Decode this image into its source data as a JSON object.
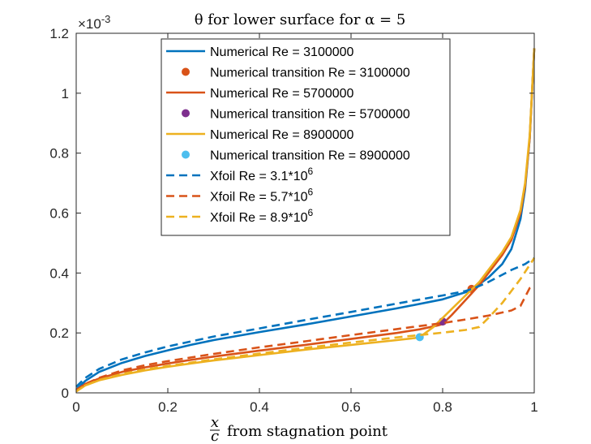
{
  "chart_data": {
    "type": "line",
    "title": "θ for lower surface for α = 5",
    "xlabel_frac_num": "x",
    "xlabel_frac_den": "c",
    "xlabel_text": "from stagnation point",
    "ylabel": "",
    "y_exponent": "×10",
    "y_exponent_power": "-3",
    "xlim": [
      0,
      1
    ],
    "ylim": [
      0,
      1.2
    ],
    "xticks": [
      0,
      0.2,
      0.4,
      0.6,
      0.8,
      1
    ],
    "yticks": [
      0,
      0.2,
      0.4,
      0.6,
      0.8,
      1,
      1.2
    ],
    "xtick_labels": [
      "0",
      "0.2",
      "0.4",
      "0.6",
      "0.8",
      "1"
    ],
    "ytick_labels": [
      "0",
      "0.2",
      "0.4",
      "0.6",
      "0.8",
      "1",
      "1.2"
    ],
    "grid": false,
    "legend_position": "top-center",
    "series": [
      {
        "name": "Numerical Re = 3100000",
        "style": "solid",
        "color": "#0072BD",
        "x": [
          0,
          0.02,
          0.05,
          0.1,
          0.15,
          0.2,
          0.25,
          0.3,
          0.4,
          0.5,
          0.6,
          0.7,
          0.8,
          0.85,
          0.86,
          0.87,
          0.9,
          0.93,
          0.95,
          0.97,
          0.98,
          0.99,
          1.0
        ],
        "y": [
          0.01,
          0.04,
          0.07,
          0.1,
          0.123,
          0.142,
          0.16,
          0.176,
          0.203,
          0.228,
          0.255,
          0.282,
          0.312,
          0.336,
          0.342,
          0.352,
          0.385,
          0.43,
          0.48,
          0.58,
          0.68,
          0.85,
          1.15
        ]
      },
      {
        "name": "Numerical transition Re = 3100000",
        "style": "marker",
        "color": "#D95319",
        "x": [
          0.863
        ],
        "y": [
          0.347
        ]
      },
      {
        "name": "Numerical Re = 5700000",
        "style": "solid",
        "color": "#D95319",
        "x": [
          0,
          0.02,
          0.05,
          0.1,
          0.15,
          0.2,
          0.25,
          0.3,
          0.4,
          0.5,
          0.6,
          0.7,
          0.75,
          0.79,
          0.8,
          0.82,
          0.85,
          0.88,
          0.9,
          0.93,
          0.95,
          0.97,
          0.98,
          0.99,
          1.0
        ],
        "y": [
          0.005,
          0.03,
          0.048,
          0.07,
          0.085,
          0.098,
          0.11,
          0.121,
          0.141,
          0.16,
          0.18,
          0.2,
          0.212,
          0.225,
          0.23,
          0.26,
          0.31,
          0.36,
          0.4,
          0.46,
          0.51,
          0.6,
          0.69,
          0.85,
          1.15
        ]
      },
      {
        "name": "Numerical transition Re = 5700000",
        "style": "marker",
        "color": "#7E2F8E",
        "x": [
          0.8
        ],
        "y": [
          0.238
        ]
      },
      {
        "name": "Numerical Re = 8900000",
        "style": "solid",
        "color": "#EDB120",
        "x": [
          0,
          0.02,
          0.05,
          0.1,
          0.15,
          0.2,
          0.25,
          0.3,
          0.4,
          0.5,
          0.6,
          0.7,
          0.74,
          0.75,
          0.78,
          0.82,
          0.86,
          0.88,
          0.9,
          0.93,
          0.95,
          0.97,
          0.98,
          0.99,
          1.0
        ],
        "y": [
          0.005,
          0.025,
          0.042,
          0.06,
          0.075,
          0.087,
          0.098,
          0.108,
          0.126,
          0.144,
          0.16,
          0.176,
          0.183,
          0.186,
          0.22,
          0.28,
          0.34,
          0.37,
          0.41,
          0.47,
          0.52,
          0.61,
          0.7,
          0.86,
          1.15
        ]
      },
      {
        "name": "Numerical transition Re = 8900000",
        "style": "marker",
        "color": "#4DBEEE",
        "x": [
          0.75
        ],
        "y": [
          0.186
        ]
      },
      {
        "name": "Xfoil Re = 3.1*10",
        "name_sup": "6",
        "style": "dashed",
        "color": "#0072BD",
        "x": [
          0,
          0.02,
          0.05,
          0.1,
          0.15,
          0.2,
          0.3,
          0.4,
          0.5,
          0.6,
          0.7,
          0.8,
          0.85,
          0.87,
          0.9,
          0.95,
          0.98,
          1.0
        ],
        "y": [
          0.02,
          0.05,
          0.08,
          0.112,
          0.135,
          0.155,
          0.188,
          0.215,
          0.243,
          0.27,
          0.298,
          0.325,
          0.34,
          0.35,
          0.37,
          0.41,
          0.43,
          0.45
        ]
      },
      {
        "name": "Xfoil Re = 5.7*10",
        "name_sup": "6",
        "style": "dashed",
        "color": "#D95319",
        "x": [
          0,
          0.02,
          0.05,
          0.1,
          0.15,
          0.2,
          0.3,
          0.4,
          0.5,
          0.6,
          0.7,
          0.8,
          0.85,
          0.9,
          0.95,
          0.97,
          0.98,
          0.99,
          1.0
        ],
        "y": [
          0.01,
          0.03,
          0.05,
          0.075,
          0.092,
          0.106,
          0.13,
          0.152,
          0.172,
          0.193,
          0.213,
          0.233,
          0.245,
          0.258,
          0.275,
          0.29,
          0.32,
          0.35,
          0.36
        ]
      },
      {
        "name": "Xfoil Re = 8.9*10",
        "name_sup": "6",
        "style": "dashed",
        "color": "#EDB120",
        "x": [
          0,
          0.02,
          0.05,
          0.1,
          0.15,
          0.2,
          0.3,
          0.4,
          0.5,
          0.6,
          0.7,
          0.8,
          0.85,
          0.88,
          0.9,
          0.93,
          0.95,
          0.97,
          1.0
        ],
        "y": [
          0.005,
          0.025,
          0.043,
          0.063,
          0.078,
          0.09,
          0.112,
          0.131,
          0.15,
          0.168,
          0.185,
          0.201,
          0.21,
          0.22,
          0.25,
          0.3,
          0.34,
          0.38,
          0.45
        ]
      }
    ]
  }
}
